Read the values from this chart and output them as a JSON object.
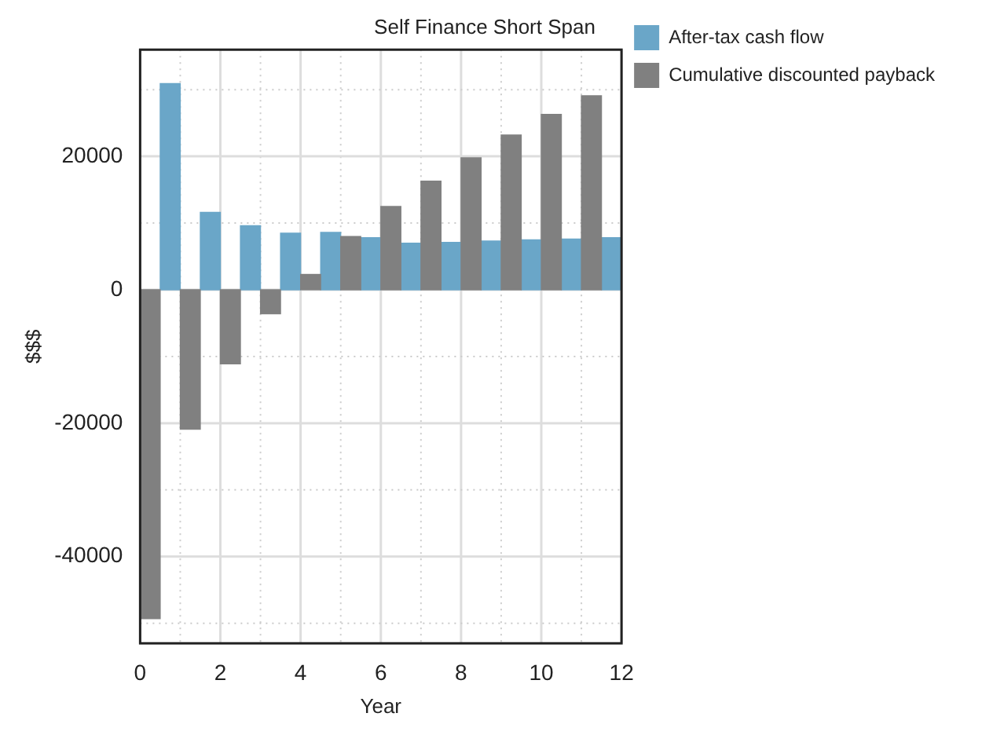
{
  "chart_data": {
    "type": "bar",
    "title": "Self Finance Short Span",
    "xlabel": "Year",
    "ylabel": "$$$",
    "x": [
      0.5,
      1.5,
      2.5,
      3.5,
      4.5,
      5.5,
      6.5,
      7.5,
      8.5,
      9.5,
      10.5,
      11.5
    ],
    "series": [
      {
        "name": "Cumulative discounted payback",
        "color": "#808080",
        "values": [
          -49300,
          -20900,
          -11100,
          -3600,
          2300,
          8000,
          12500,
          16300,
          19800,
          23200,
          26300,
          29100
        ]
      },
      {
        "name": "After-tax cash flow",
        "color": "#6aa6c8",
        "values": [
          30900,
          11600,
          9600,
          8500,
          8600,
          7800,
          7000,
          7100,
          7300,
          7500,
          7600,
          7800
        ]
      }
    ],
    "xlim": [
      0,
      12
    ],
    "xticks": [
      0,
      {
        "value": 1,
        "label": null
      },
      2,
      {
        "value": 3,
        "label": null
      },
      4,
      {
        "value": 5,
        "label": null
      },
      6,
      {
        "value": 7,
        "label": null
      },
      8,
      {
        "value": 9,
        "label": null
      },
      10,
      {
        "value": 11,
        "label": null
      },
      12
    ],
    "ylim": [
      -53000,
      36000
    ],
    "yticks": [
      {
        "value": -50000,
        "label": null
      },
      -40000,
      {
        "value": -30000,
        "label": null
      },
      -20000,
      {
        "value": -10000,
        "label": null
      },
      0,
      {
        "value": 10000,
        "label": null
      },
      20000,
      {
        "value": 30000,
        "label": null
      }
    ],
    "grid": true,
    "legend": "right"
  }
}
